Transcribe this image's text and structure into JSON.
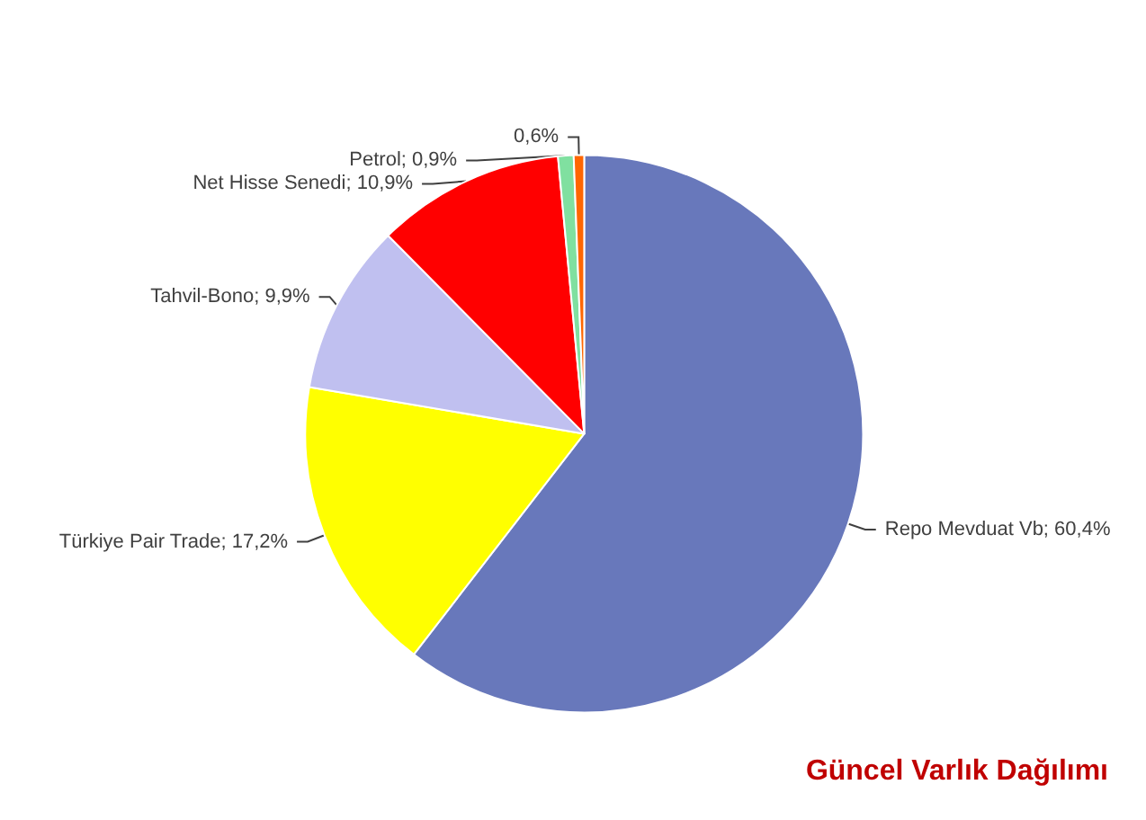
{
  "chart_data": {
    "type": "pie",
    "title": "Güncel Varlık Dağılımı",
    "categories": [
      "Repo Mevduat Vb",
      "Türkiye Pair Trade",
      "Tahvil-Bono",
      "Net Hisse Senedi",
      "Petrol",
      null
    ],
    "values": [
      60.4,
      17.2,
      9.9,
      10.9,
      0.9,
      0.6
    ],
    "value_labels": [
      "60,4%",
      "17,2%",
      "9,9%",
      "10,9%",
      "0,9%",
      "0,6%"
    ],
    "colors": [
      "#6878bb",
      "#ffff00",
      "#c0c0f0",
      "#ff0000",
      "#80e0a0",
      "#ff6600"
    ],
    "legend": false
  }
}
